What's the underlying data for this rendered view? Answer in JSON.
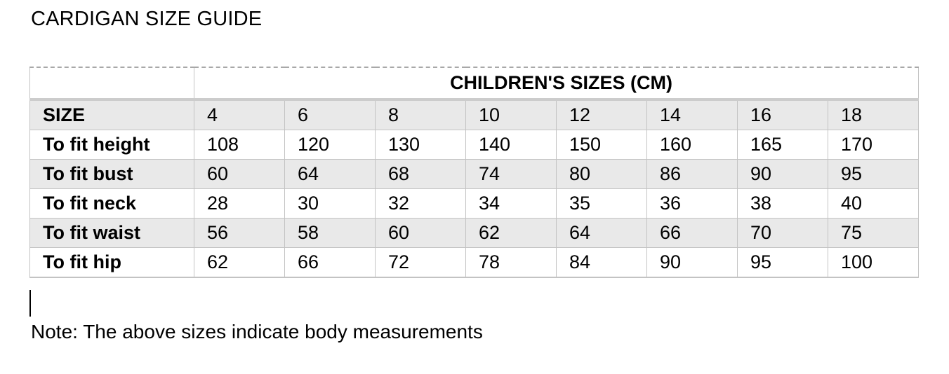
{
  "page": {
    "title": "CARDIGAN SIZE GUIDE",
    "note": "Note: The above sizes indicate body measurements"
  },
  "table": {
    "group_header": "CHILDREN'S SIZES (CM)",
    "size_row_label": "SIZE",
    "sizes": [
      "4",
      "6",
      "8",
      "10",
      "12",
      "14",
      "16",
      "18"
    ],
    "rows": [
      {
        "label": "To fit height",
        "values": [
          "108",
          "120",
          "130",
          "140",
          "150",
          "160",
          "165",
          "170"
        ]
      },
      {
        "label": "To fit bust",
        "values": [
          "60",
          "64",
          "68",
          "74",
          "80",
          "86",
          "90",
          "95"
        ]
      },
      {
        "label": "To fit neck",
        "values": [
          "28",
          "30",
          "32",
          "34",
          "35",
          "36",
          "38",
          "40"
        ]
      },
      {
        "label": "To fit waist",
        "values": [
          "56",
          "58",
          "60",
          "62",
          "64",
          "66",
          "70",
          "75"
        ]
      },
      {
        "label": "To fit hip",
        "values": [
          "62",
          "66",
          "72",
          "78",
          "84",
          "90",
          "95",
          "100"
        ]
      }
    ]
  },
  "colors": {
    "row_shade": "#e9e9e9",
    "solid_border": "#c3c3c3",
    "dashed_border": "#a8a8a8",
    "thick_border": "#cccccc",
    "text": "#000000"
  }
}
